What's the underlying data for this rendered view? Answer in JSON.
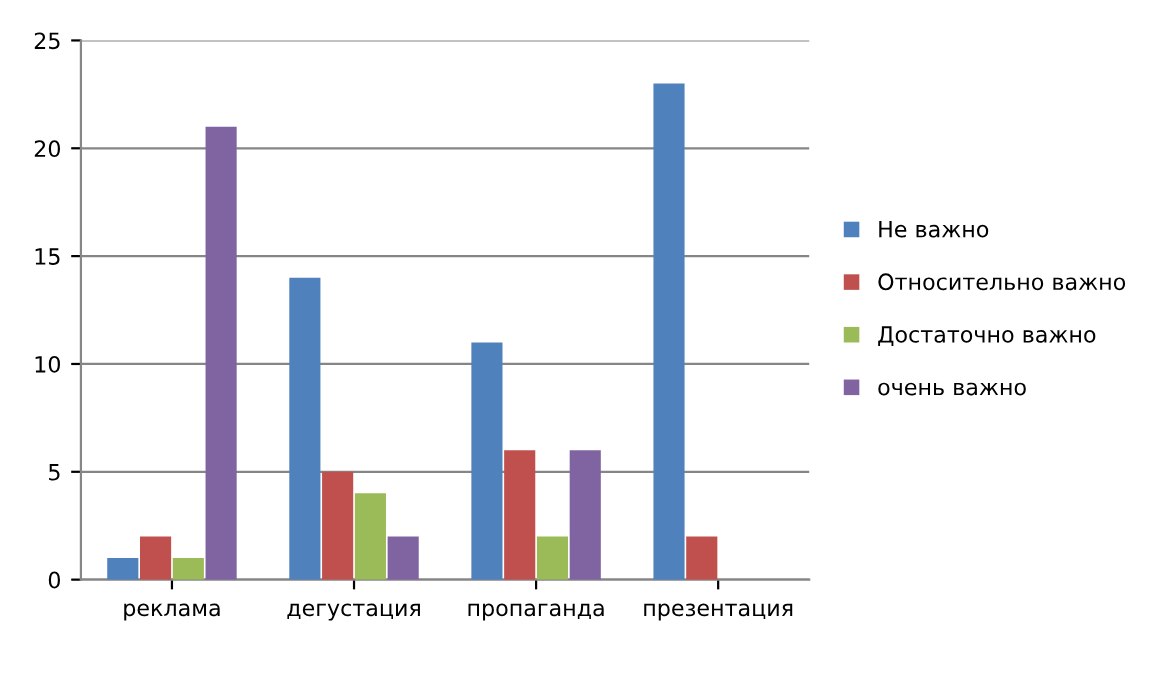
{
  "chart_data": {
    "type": "bar",
    "categories": [
      "реклама",
      "дегустация",
      "пропаганда",
      "презентация"
    ],
    "series": [
      {
        "name": "Не важно",
        "color": "#4f81bd",
        "values": [
          1,
          14,
          11,
          23
        ]
      },
      {
        "name": "Относительно важно",
        "color": "#c0504d",
        "values": [
          2,
          5,
          6,
          2
        ]
      },
      {
        "name": "Достаточно важно",
        "color": "#9bbb59",
        "values": [
          1,
          4,
          2,
          0
        ]
      },
      {
        "name": "очень важно",
        "color": "#8064a2",
        "values": [
          21,
          2,
          6,
          0
        ]
      }
    ],
    "ylim": [
      0,
      25
    ],
    "yticks": [
      0,
      5,
      10,
      15,
      20,
      25
    ],
    "grid": "y",
    "legend": "right"
  }
}
